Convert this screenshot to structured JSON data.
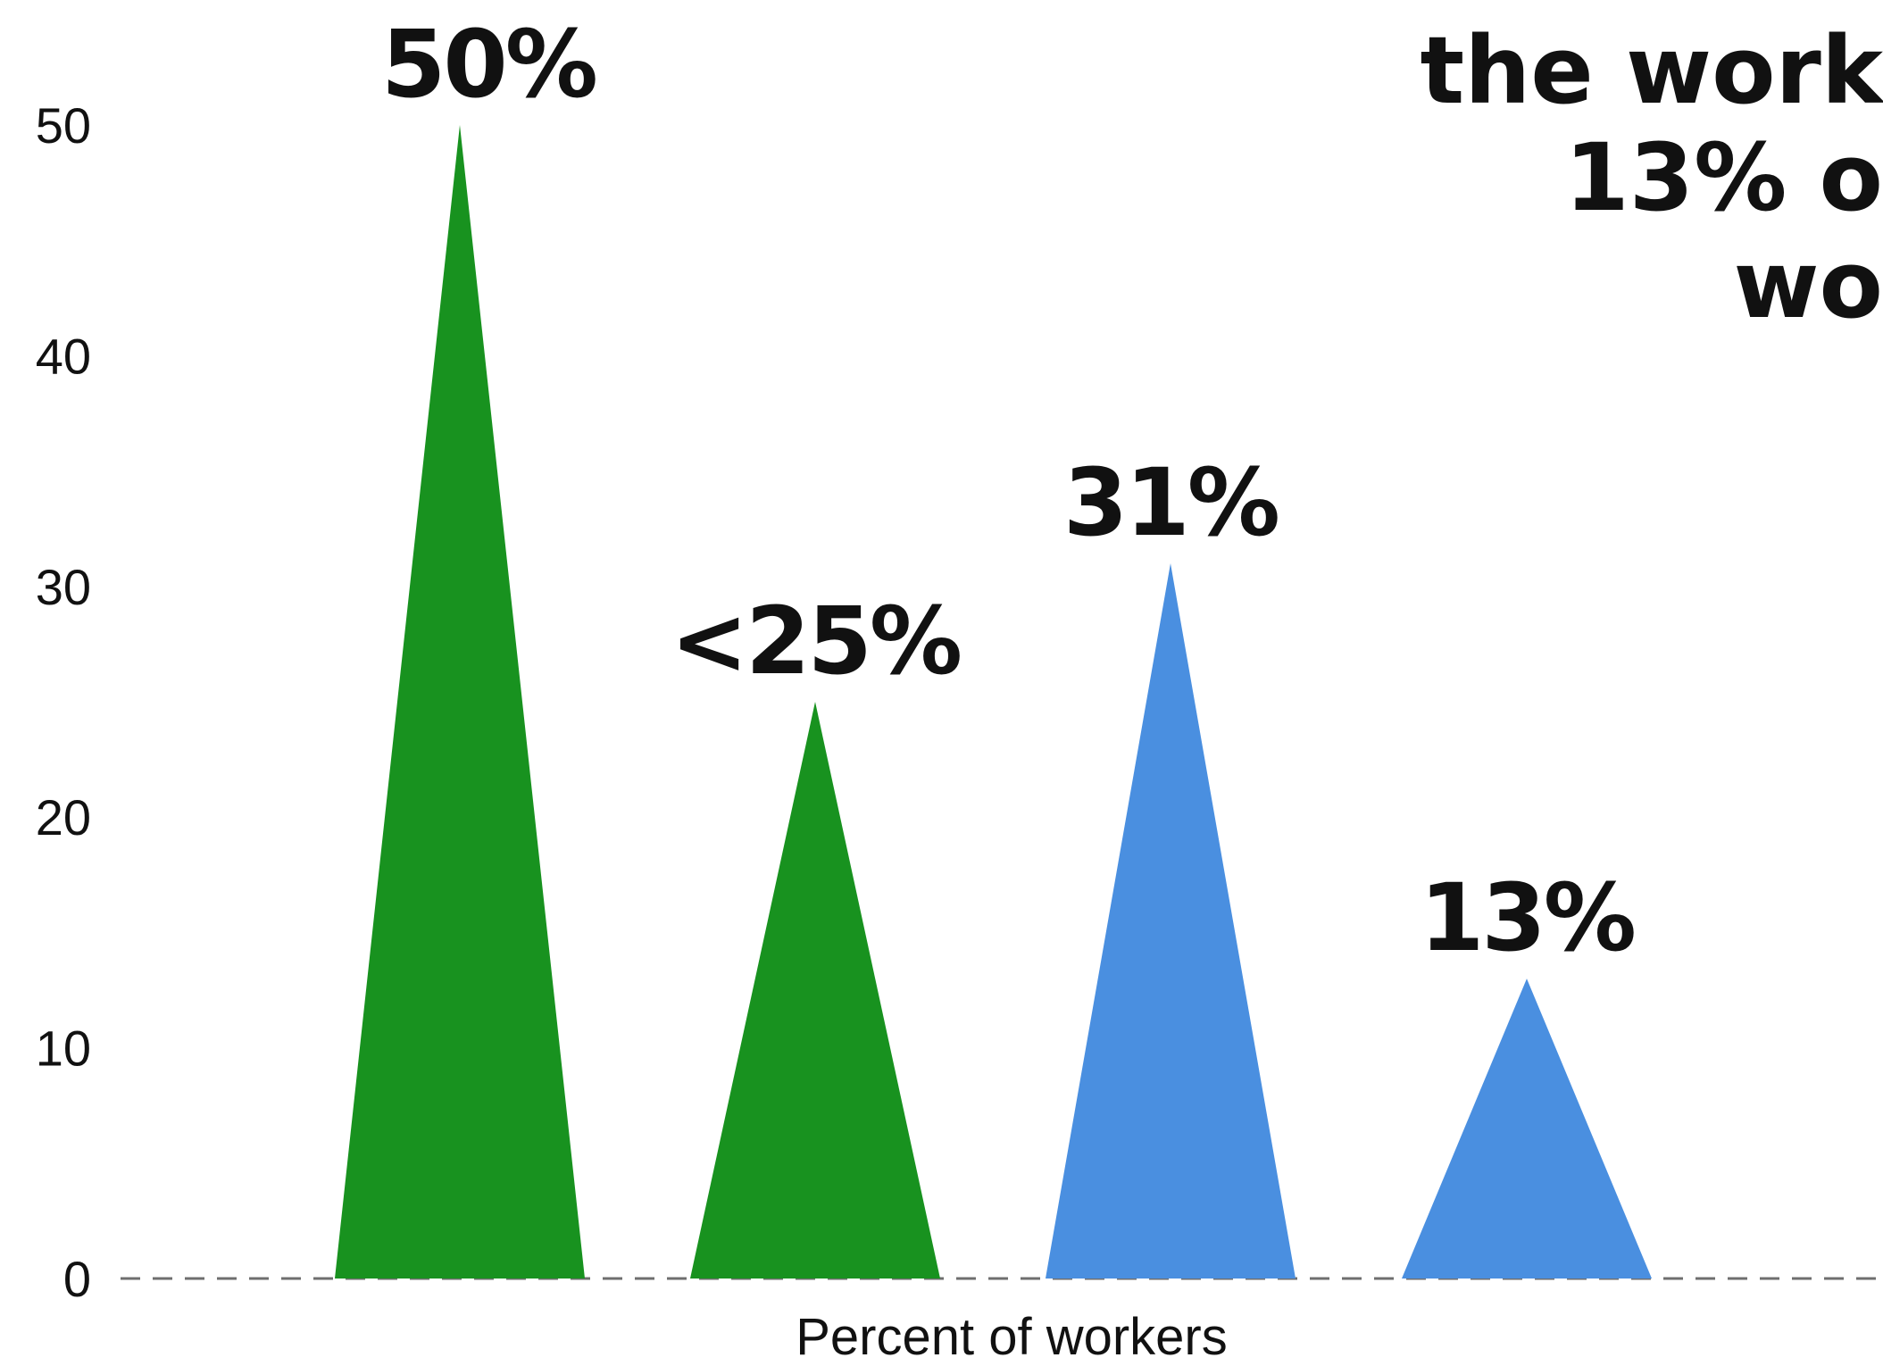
{
  "chart_data": {
    "type": "bar",
    "title_lines": [
      "the work",
      "13% o",
      "wo"
    ],
    "xlabel": "Percent of workers",
    "ylim": [
      0,
      50
    ],
    "yticks": [
      0,
      10,
      20,
      30,
      40,
      50
    ],
    "values": [
      50,
      25,
      31,
      13
    ],
    "data_labels": [
      "50%",
      "<25%",
      "31%",
      "13%"
    ],
    "colors": [
      "#18921f",
      "#18921f",
      "#4a8fe0",
      "#4a8fe0"
    ],
    "baseline_style": "dashed",
    "grid": false,
    "legend": "none"
  }
}
